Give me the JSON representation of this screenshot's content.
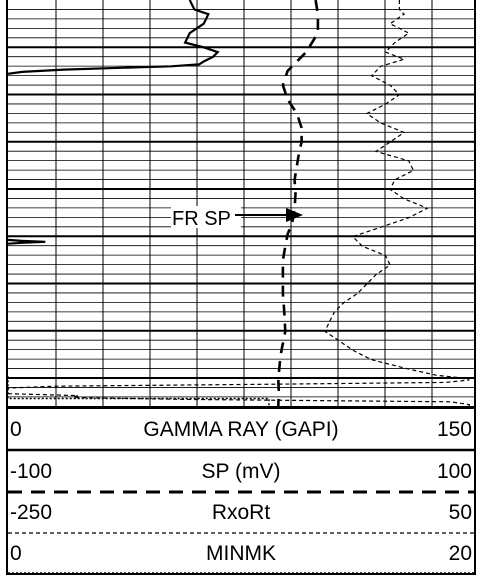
{
  "chart_data": {
    "type": "well-log",
    "annotation": "FR SP",
    "tracks": [
      {
        "name": "GAMMA RAY (GAPI)",
        "min": "0",
        "max": "150",
        "line_style": "solid"
      },
      {
        "name": "SP (mV)",
        "min": "-100",
        "max": "100",
        "line_style": "dashed-thick"
      },
      {
        "name": "RxoRt",
        "min": "-250",
        "max": "50",
        "line_style": "dashed-thin"
      },
      {
        "name": "MINMK",
        "min": "0",
        "max": "20",
        "line_style": "dotted"
      }
    ],
    "gr_curve": [
      [
        0.39,
        0
      ],
      [
        0.4,
        2
      ],
      [
        0.43,
        3
      ],
      [
        0.42,
        5
      ],
      [
        0.39,
        7
      ],
      [
        0.38,
        9
      ],
      [
        0.42,
        10
      ],
      [
        0.45,
        11
      ],
      [
        0.44,
        12
      ],
      [
        0.42,
        13
      ],
      [
        0.41,
        13.6
      ],
      [
        0.35,
        14
      ],
      [
        0.25,
        14.3
      ],
      [
        0.12,
        14.7
      ],
      [
        0.03,
        15.2
      ],
      [
        0.0,
        15.6
      ]
    ],
    "gr_curve_2": [
      [
        0.0,
        50.7
      ],
      [
        0.03,
        50.9
      ],
      [
        0.08,
        51.1
      ],
      [
        0.03,
        51.3
      ],
      [
        0.0,
        51.5
      ]
    ],
    "sp_curve": [
      [
        0.66,
        0
      ],
      [
        0.665,
        3
      ],
      [
        0.665,
        7
      ],
      [
        0.64,
        11
      ],
      [
        0.62,
        13
      ],
      [
        0.6,
        15
      ],
      [
        0.59,
        18
      ],
      [
        0.6,
        21
      ],
      [
        0.62,
        24
      ],
      [
        0.63,
        27
      ],
      [
        0.63,
        30
      ],
      [
        0.625,
        32
      ],
      [
        0.62,
        35
      ],
      [
        0.615,
        38
      ],
      [
        0.617,
        41
      ],
      [
        0.615,
        44
      ],
      [
        0.61,
        47
      ],
      [
        0.6,
        49.5
      ],
      [
        0.595,
        52
      ],
      [
        0.59,
        55
      ],
      [
        0.59,
        58
      ],
      [
        0.59,
        62
      ],
      [
        0.593,
        66
      ],
      [
        0.595,
        70
      ],
      [
        0.585,
        75
      ],
      [
        0.58,
        80
      ],
      [
        0.581,
        82.5
      ],
      [
        0.58,
        86
      ]
    ],
    "rxort_curve": [
      [
        0.84,
        0
      ],
      [
        0.84,
        2
      ],
      [
        0.85,
        3
      ],
      [
        0.82,
        5
      ],
      [
        0.86,
        7
      ],
      [
        0.83,
        9
      ],
      [
        0.81,
        11
      ],
      [
        0.85,
        12.5
      ],
      [
        0.8,
        14
      ],
      [
        0.78,
        16
      ],
      [
        0.82,
        18
      ],
      [
        0.84,
        20
      ],
      [
        0.81,
        22
      ],
      [
        0.77,
        24
      ],
      [
        0.8,
        26
      ],
      [
        0.85,
        28
      ],
      [
        0.82,
        30
      ],
      [
        0.79,
        32
      ],
      [
        0.86,
        34
      ],
      [
        0.87,
        36
      ],
      [
        0.83,
        38
      ],
      [
        0.82,
        40
      ],
      [
        0.85,
        42
      ],
      [
        0.9,
        44
      ],
      [
        0.86,
        46
      ],
      [
        0.8,
        48
      ],
      [
        0.74,
        50
      ],
      [
        0.76,
        52
      ],
      [
        0.81,
        54
      ],
      [
        0.82,
        56
      ],
      [
        0.79,
        58
      ],
      [
        0.77,
        60
      ],
      [
        0.75,
        62
      ],
      [
        0.72,
        64
      ],
      [
        0.7,
        66
      ],
      [
        0.69,
        68
      ],
      [
        0.68,
        70
      ],
      [
        0.71,
        72
      ],
      [
        0.74,
        74
      ],
      [
        0.78,
        76
      ],
      [
        0.86,
        78
      ],
      [
        0.92,
        79.3
      ],
      [
        0.97,
        79.8
      ],
      [
        0.99,
        80.3
      ],
      [
        0.94,
        80.8
      ],
      [
        0.55,
        81.2
      ],
      [
        0.1,
        81.6
      ],
      [
        0.0,
        82.0
      ],
      [
        0.0,
        83.2
      ],
      [
        0.15,
        83.6
      ],
      [
        0.14,
        84.0
      ],
      [
        0.38,
        84.4
      ],
      [
        0.95,
        84.9
      ],
      [
        0.99,
        85.5
      ],
      [
        0.99,
        86
      ]
    ],
    "minmk_curve": [
      [
        0.0,
        79.5
      ],
      [
        0.0,
        84.2
      ],
      [
        0.56,
        84.2
      ],
      [
        0.56,
        86
      ]
    ]
  }
}
